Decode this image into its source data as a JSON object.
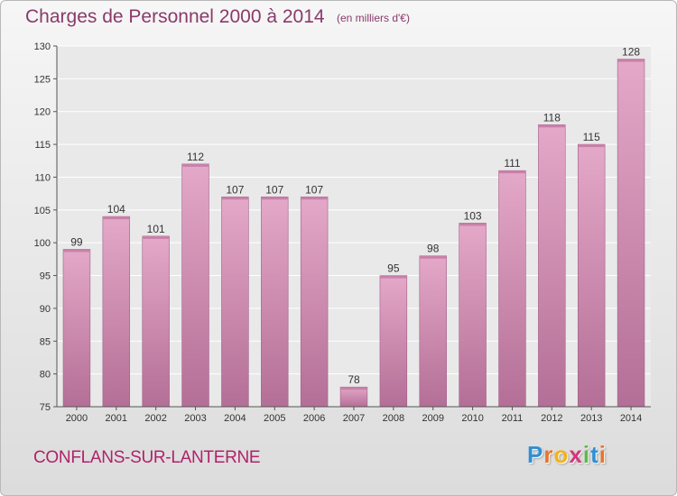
{
  "chart_data": {
    "type": "bar",
    "title": "Charges de Personnel 2000 à 2014",
    "subtitle": "(en milliers d'€)",
    "xlabel": "",
    "ylabel": "",
    "categories": [
      "2000",
      "2001",
      "2002",
      "2003",
      "2004",
      "2005",
      "2006",
      "2007",
      "2008",
      "2009",
      "2010",
      "2011",
      "2012",
      "2013",
      "2014"
    ],
    "values": [
      99,
      104,
      101,
      112,
      107,
      107,
      107,
      78,
      95,
      98,
      103,
      111,
      118,
      115,
      128
    ],
    "ylim": [
      75,
      130
    ],
    "yticks": [
      75,
      80,
      85,
      90,
      95,
      100,
      105,
      110,
      115,
      120,
      125,
      130
    ],
    "grid": true,
    "legend": "none",
    "bar_color": "#d58fb5"
  },
  "footer": {
    "commune": "CONFLANS-SUR-LANTERNE",
    "logo_letters": [
      "P",
      "r",
      "o",
      "x",
      "i",
      "t",
      "i"
    ],
    "logo_colors": [
      "#2f8fd4",
      "#e8742a",
      "#f2b21c",
      "#d6367a",
      "#5cb84a",
      "#2f8fd4",
      "#e8742a"
    ]
  }
}
